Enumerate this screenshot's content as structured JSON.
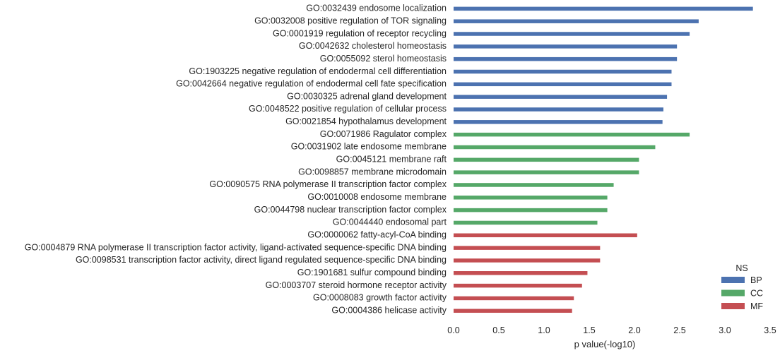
{
  "chart_data": {
    "type": "bar",
    "orientation": "horizontal",
    "xlabel": "p value(-log10)",
    "ylabel": "",
    "xlim": [
      0,
      3.5
    ],
    "xticks": [
      "0.0",
      "0.5",
      "1.0",
      "1.5",
      "2.0",
      "2.5",
      "3.0",
      "3.5"
    ],
    "grid": false,
    "legend": {
      "title": "NS",
      "position": "lower-right",
      "entries": [
        {
          "name": "BP",
          "color": "#4c72b0"
        },
        {
          "name": "CC",
          "color": "#55a868"
        },
        {
          "name": "MF",
          "color": "#c44e52"
        }
      ]
    },
    "categories": [
      "GO:0032439 endosome localization",
      "GO:0032008 positive regulation of TOR signaling",
      "GO:0001919 regulation of receptor recycling",
      "GO:0042632 cholesterol homeostasis",
      "GO:0055092 sterol homeostasis",
      "GO:1903225 negative regulation of endodermal cell differentiation",
      "GO:0042664 negative regulation of endodermal cell fate specification",
      "GO:0030325 adrenal gland development",
      "GO:0048522 positive regulation of cellular process",
      "GO:0021854 hypothalamus development",
      "GO:0071986 Ragulator complex",
      "GO:0031902 late endosome membrane",
      "GO:0045121 membrane raft",
      "GO:0098857 membrane microdomain",
      "GO:0090575 RNA polymerase II transcription factor complex",
      "GO:0010008 endosome membrane",
      "GO:0044798 nuclear transcription factor complex",
      "GO:0044440 endosomal part",
      "GO:0000062 fatty-acyl-CoA binding",
      "GO:0004879 RNA polymerase II transcription factor activity, ligand-activated sequence-specific DNA binding",
      "GO:0098531 transcription factor activity, direct ligand regulated sequence-specific DNA binding",
      "GO:1901681 sulfur compound binding",
      "GO:0003707 steroid hormone receptor activity",
      "GO:0008083 growth factor activity",
      "GO:0004386 helicase activity"
    ],
    "values": [
      3.31,
      2.71,
      2.61,
      2.47,
      2.47,
      2.41,
      2.41,
      2.36,
      2.32,
      2.31,
      2.61,
      2.23,
      2.05,
      2.05,
      1.77,
      1.7,
      1.7,
      1.59,
      2.03,
      1.62,
      1.62,
      1.48,
      1.42,
      1.33,
      1.31
    ],
    "groups": [
      "BP",
      "BP",
      "BP",
      "BP",
      "BP",
      "BP",
      "BP",
      "BP",
      "BP",
      "BP",
      "CC",
      "CC",
      "CC",
      "CC",
      "CC",
      "CC",
      "CC",
      "CC",
      "MF",
      "MF",
      "MF",
      "MF",
      "MF",
      "MF",
      "MF"
    ]
  }
}
